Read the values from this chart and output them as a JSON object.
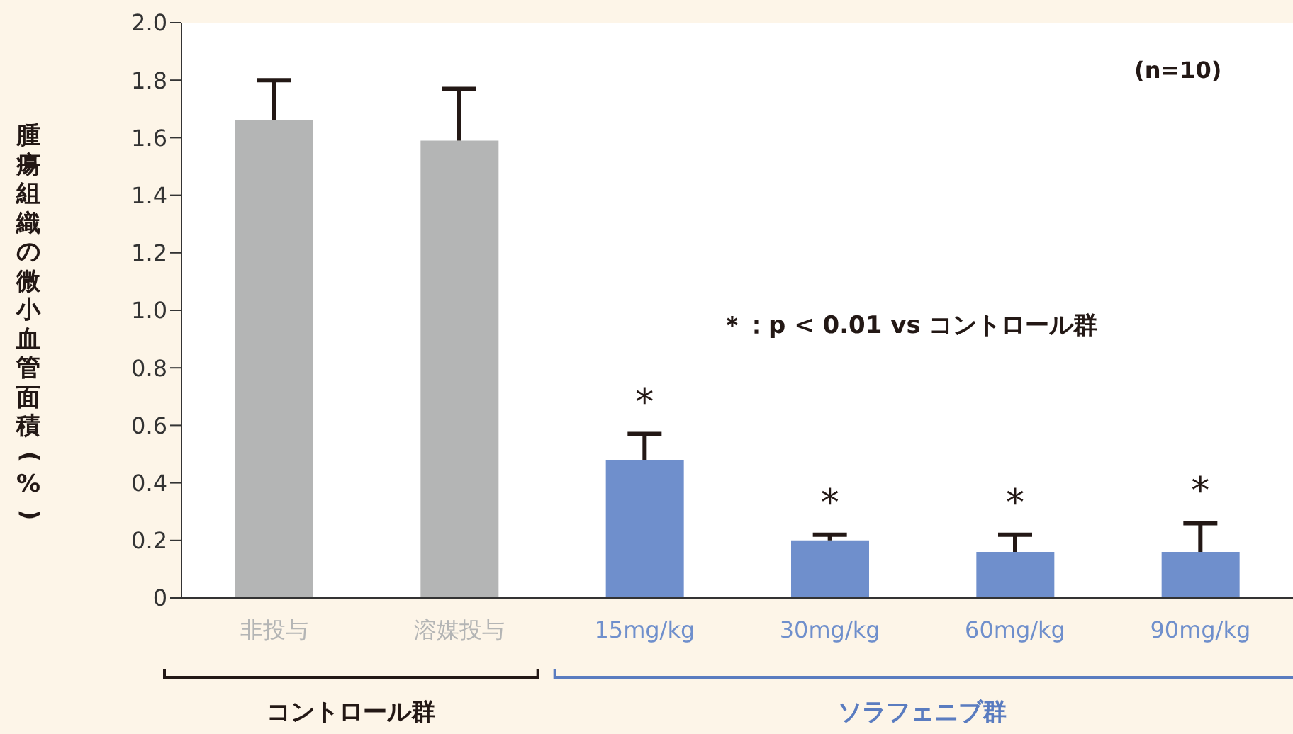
{
  "chart_data": {
    "type": "bar",
    "ylabel": "腫瘍組織の微小血管面積(%)",
    "categories": [
      "非投与",
      "溶媒投与",
      "15mg/kg",
      "30mg/kg",
      "60mg/kg",
      "90mg/kg"
    ],
    "values": [
      1.66,
      1.59,
      0.48,
      0.2,
      0.16,
      0.16
    ],
    "colors": [
      "#b4b5b5",
      "#b4b5b5",
      "#6f8fcc",
      "#6f8fcc",
      "#6f8fcc",
      "#6f8fcc"
    ],
    "errors": [
      [
        1.66,
        1.8
      ],
      [
        1.59,
        1.77
      ],
      [
        0.48,
        0.57
      ],
      [
        0.2,
        0.22
      ],
      [
        0.16,
        0.22
      ],
      [
        0.16,
        0.26
      ]
    ],
    "ylim": [
      0,
      2
    ],
    "yticks": [
      0,
      0.2,
      0.4,
      0.6,
      0.8,
      {
        "value": 1,
        "label": "1.0"
      },
      1.2,
      1.4,
      1.6,
      1.8,
      {
        "value": 2,
        "label": "2.0"
      }
    ],
    "annotations": [
      "(n=10)",
      "＊：p < 0.01 vs コントロール群",
      "コントロール群",
      "ソラフェニブ群",
      "*",
      "*",
      "*",
      "*"
    ]
  }
}
